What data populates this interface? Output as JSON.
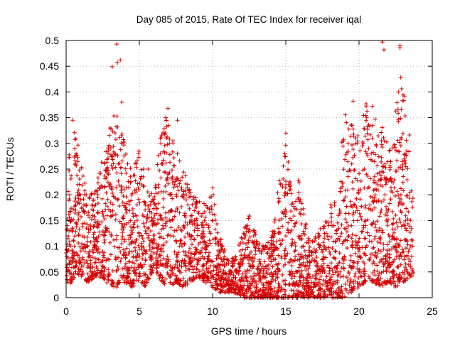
{
  "chart_data": {
    "type": "scatter",
    "title": "Day 085 of 2015, Rate Of TEC Index for receiver iqal",
    "xlabel": "GPS time / hours",
    "ylabel": "ROTI / TECUs",
    "xlim": [
      0,
      25
    ],
    "ylim": [
      0,
      0.5
    ],
    "xticks": [
      "0",
      "5",
      "10",
      "15",
      "20",
      "25"
    ],
    "yticks": [
      "0",
      "0.05",
      "0.1",
      "0.15",
      "0.2",
      "0.25",
      "0.3",
      "0.35",
      "0.4",
      "0.45",
      "0.5"
    ],
    "grid": true,
    "marker": "+",
    "color": "#d40000",
    "series": [
      {
        "values_note_x_hours_y_tecu": [],
        "x": [
          0.05,
          0.15,
          0.25,
          0.35,
          0.45,
          0.55,
          0.65,
          0.8,
          0.9,
          1.1,
          1.3,
          1.5,
          1.7,
          1.9,
          2.3,
          2.5,
          2.7,
          2.9,
          3.0,
          3.1,
          3.2,
          3.3,
          3.5,
          3.7,
          3.8,
          4.0,
          4.2,
          4.4,
          4.6,
          4.8,
          5.0,
          5.2,
          5.4,
          5.6,
          6.5,
          6.6,
          6.7,
          6.8,
          7.0,
          7.2,
          7.4,
          7.6,
          7.8,
          8.0,
          8.2,
          8.4,
          8.6,
          9.0,
          9.3,
          9.6,
          9.9,
          10.2,
          10.6,
          11.0,
          11.3,
          12.0,
          12.3,
          12.6,
          12.9,
          13.2,
          13.5,
          13.8,
          14.1,
          14.4,
          14.7,
          15.0,
          15.2,
          15.4,
          15.6,
          15.8,
          16.0,
          16.3,
          16.6,
          16.9,
          17.2,
          17.5,
          17.8,
          18.1,
          18.4,
          18.7,
          19.0,
          19.3,
          19.5,
          19.7,
          19.9,
          20.1,
          20.3,
          20.5,
          20.7,
          20.9,
          21.1,
          21.3,
          21.5,
          21.7,
          21.9,
          22.1,
          22.3,
          22.5,
          22.7,
          22.9,
          23.1,
          23.3,
          23.5
        ],
        "y": [
          0.08,
          0.12,
          0.2,
          0.15,
          0.07,
          0.1,
          0.18,
          0.22,
          0.05,
          0.12,
          0.09,
          0.16,
          0.2,
          0.11,
          0.04,
          0.09,
          0.13,
          0.24,
          0.33,
          0.12,
          0.16,
          0.28,
          0.19,
          0.07,
          0.3,
          0.11,
          0.26,
          0.15,
          0.08,
          0.21,
          0.12,
          0.06,
          0.18,
          0.25,
          0.09,
          0.14,
          0.32,
          0.35,
          0.07,
          0.17,
          0.22,
          0.28,
          0.11,
          0.09,
          0.19,
          0.12,
          0.06,
          0.14,
          0.08,
          0.1,
          0.05,
          0.06,
          0.04,
          0.03,
          0.05,
          0.02,
          0.04,
          0.06,
          0.03,
          0.05,
          0.02,
          0.03,
          0.06,
          0.04,
          0.08,
          0.12,
          0.22,
          0.15,
          0.09,
          0.05,
          0.03,
          0.06,
          0.04,
          0.02,
          0.03,
          0.05,
          0.03,
          0.04,
          0.06,
          0.05,
          0.08,
          0.12,
          0.26,
          0.18,
          0.15,
          0.21,
          0.14,
          0.24,
          0.11,
          0.17,
          0.2,
          0.13,
          0.09,
          0.19,
          0.16,
          0.23,
          0.12,
          0.1,
          0.18,
          0.08,
          0.14,
          0.11,
          0.07
        ]
      }
    ],
    "envelope_hours": [
      0.0,
      0.2,
      0.4,
      0.7,
      1.0,
      1.5,
      2.0,
      2.5,
      3.0,
      3.5,
      4.0,
      4.5,
      5.0,
      5.5,
      6.0,
      6.5,
      7.0,
      7.5,
      8.0,
      8.5,
      9.0,
      9.5,
      10.0,
      10.5,
      11.0,
      11.5,
      12.0,
      12.5,
      13.0,
      13.5,
      14.0,
      14.5,
      15.0,
      15.5,
      16.0,
      16.5,
      17.0,
      17.5,
      18.0,
      18.5,
      19.0,
      19.5,
      20.0,
      20.5,
      21.0,
      21.5,
      22.0,
      22.5,
      23.0,
      23.5,
      23.7
    ],
    "envelope_upper_tecu": [
      0.2,
      0.3,
      0.34,
      0.32,
      0.26,
      0.2,
      0.22,
      0.28,
      0.33,
      0.38,
      0.3,
      0.24,
      0.3,
      0.22,
      0.2,
      0.33,
      0.36,
      0.3,
      0.25,
      0.21,
      0.2,
      0.18,
      0.22,
      0.12,
      0.08,
      0.08,
      0.12,
      0.16,
      0.12,
      0.1,
      0.12,
      0.22,
      0.3,
      0.2,
      0.24,
      0.12,
      0.12,
      0.14,
      0.18,
      0.2,
      0.36,
      0.34,
      0.32,
      0.38,
      0.35,
      0.34,
      0.3,
      0.38,
      0.42,
      0.32,
      0.2
    ],
    "envelope_lower_tecu": [
      0.04,
      0.02,
      0.03,
      0.05,
      0.04,
      0.03,
      0.04,
      0.04,
      0.02,
      0.02,
      0.03,
      0.02,
      0.03,
      0.02,
      0.06,
      0.03,
      0.02,
      0.03,
      0.02,
      0.03,
      0.04,
      0.03,
      0.02,
      0.01,
      0.01,
      0.01,
      0.0,
      0.0,
      0.0,
      0.0,
      0.0,
      0.0,
      0.0,
      0.0,
      0.0,
      0.0,
      0.0,
      0.0,
      0.0,
      0.0,
      0.0,
      0.01,
      0.02,
      0.03,
      0.03,
      0.02,
      0.03,
      0.02,
      0.03,
      0.04,
      0.04
    ],
    "outliers": [
      {
        "x": 3.45,
        "y": 0.493
      },
      {
        "x": 3.15,
        "y": 0.449
      },
      {
        "x": 3.5,
        "y": 0.457
      },
      {
        "x": 3.7,
        "y": 0.462
      },
      {
        "x": 3.8,
        "y": 0.38
      },
      {
        "x": 15.0,
        "y": 0.32
      },
      {
        "x": 21.6,
        "y": 0.497
      },
      {
        "x": 21.7,
        "y": 0.482
      },
      {
        "x": 22.8,
        "y": 0.49
      },
      {
        "x": 22.8,
        "y": 0.486
      },
      {
        "x": 22.85,
        "y": 0.428
      },
      {
        "x": 22.7,
        "y": 0.4
      },
      {
        "x": 20.9,
        "y": 0.372
      },
      {
        "x": 19.6,
        "y": 0.382
      },
      {
        "x": 7.6,
        "y": 0.345
      },
      {
        "x": 6.95,
        "y": 0.368
      },
      {
        "x": 0.45,
        "y": 0.345
      }
    ]
  }
}
